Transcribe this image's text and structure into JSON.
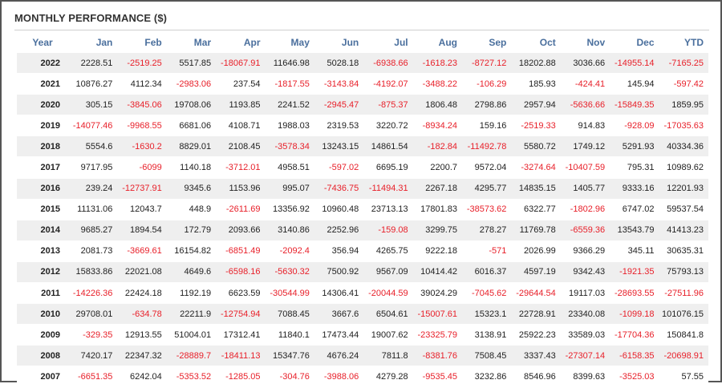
{
  "title": "MONTHLY PERFORMANCE ($)",
  "colors": {
    "negative": "#e8202a",
    "header": "#4a6f9d",
    "stripe": "#efefef"
  },
  "columns": [
    "Year",
    "Jan",
    "Feb",
    "Mar",
    "Apr",
    "May",
    "Jun",
    "Jul",
    "Aug",
    "Sep",
    "Oct",
    "Nov",
    "Dec",
    "YTD"
  ],
  "rows": [
    {
      "year": "2022",
      "values": [
        "2228.51",
        "-2519.25",
        "5517.85",
        "-18067.91",
        "11646.98",
        "5028.18",
        "-6938.66",
        "-1618.23",
        "-8727.12",
        "18202.88",
        "3036.66",
        "-14955.14",
        "-7165.25"
      ]
    },
    {
      "year": "2021",
      "values": [
        "10876.27",
        "4112.34",
        "-2983.06",
        "237.54",
        "-1817.55",
        "-3143.84",
        "-4192.07",
        "-3488.22",
        "-106.29",
        "185.93",
        "-424.41",
        "145.94",
        "-597.42"
      ]
    },
    {
      "year": "2020",
      "values": [
        "305.15",
        "-3845.06",
        "19708.06",
        "1193.85",
        "2241.52",
        "-2945.47",
        "-875.37",
        "1806.48",
        "2798.86",
        "2957.94",
        "-5636.66",
        "-15849.35",
        "1859.95"
      ]
    },
    {
      "year": "2019",
      "values": [
        "-14077.46",
        "-9968.55",
        "6681.06",
        "4108.71",
        "1988.03",
        "2319.53",
        "3220.72",
        "-8934.24",
        "159.16",
        "-2519.33",
        "914.83",
        "-928.09",
        "-17035.63"
      ]
    },
    {
      "year": "2018",
      "values": [
        "5554.6",
        "-1630.2",
        "8829.01",
        "2108.45",
        "-3578.34",
        "13243.15",
        "14861.54",
        "-182.84",
        "-11492.78",
        "5580.72",
        "1749.12",
        "5291.93",
        "40334.36"
      ]
    },
    {
      "year": "2017",
      "values": [
        "9717.95",
        "-6099",
        "1140.18",
        "-3712.01",
        "4958.51",
        "-597.02",
        "6695.19",
        "2200.7",
        "9572.04",
        "-3274.64",
        "-10407.59",
        "795.31",
        "10989.62"
      ]
    },
    {
      "year": "2016",
      "values": [
        "239.24",
        "-12737.91",
        "9345.6",
        "1153.96",
        "995.07",
        "-7436.75",
        "-11494.31",
        "2267.18",
        "4295.77",
        "14835.15",
        "1405.77",
        "9333.16",
        "12201.93"
      ]
    },
    {
      "year": "2015",
      "values": [
        "11131.06",
        "12043.7",
        "448.9",
        "-2611.69",
        "13356.92",
        "10960.48",
        "23713.13",
        "17801.83",
        "-38573.62",
        "6322.77",
        "-1802.96",
        "6747.02",
        "59537.54"
      ]
    },
    {
      "year": "2014",
      "values": [
        "9685.27",
        "1894.54",
        "172.79",
        "2093.66",
        "3140.86",
        "2252.96",
        "-159.08",
        "3299.75",
        "278.27",
        "11769.78",
        "-6559.36",
        "13543.79",
        "41413.23"
      ]
    },
    {
      "year": "2013",
      "values": [
        "2081.73",
        "-3669.61",
        "16154.82",
        "-6851.49",
        "-2092.4",
        "356.94",
        "4265.75",
        "9222.18",
        "-571",
        "2026.99",
        "9366.29",
        "345.11",
        "30635.31"
      ]
    },
    {
      "year": "2012",
      "values": [
        "15833.86",
        "22021.08",
        "4649.6",
        "-6598.16",
        "-5630.32",
        "7500.92",
        "9567.09",
        "10414.42",
        "6016.37",
        "4597.19",
        "9342.43",
        "-1921.35",
        "75793.13"
      ]
    },
    {
      "year": "2011",
      "values": [
        "-14226.36",
        "22424.18",
        "1192.19",
        "6623.59",
        "-30544.99",
        "14306.41",
        "-20044.59",
        "39024.29",
        "-7045.62",
        "-29644.54",
        "19117.03",
        "-28693.55",
        "-27511.96"
      ]
    },
    {
      "year": "2010",
      "values": [
        "29708.01",
        "-634.78",
        "22211.9",
        "-12754.94",
        "7088.45",
        "3667.6",
        "6504.61",
        "-15007.61",
        "15323.1",
        "22728.91",
        "23340.08",
        "-1099.18",
        "101076.15"
      ]
    },
    {
      "year": "2009",
      "values": [
        "-329.35",
        "12913.55",
        "51004.01",
        "17312.41",
        "11840.1",
        "17473.44",
        "19007.62",
        "-23325.79",
        "3138.91",
        "25922.23",
        "33589.03",
        "-17704.36",
        "150841.8"
      ]
    },
    {
      "year": "2008",
      "values": [
        "7420.17",
        "22347.32",
        "-28889.7",
        "-18411.13",
        "15347.76",
        "4676.24",
        "7811.8",
        "-8381.76",
        "7508.45",
        "3337.43",
        "-27307.14",
        "-6158.35",
        "-20698.91"
      ]
    },
    {
      "year": "2007",
      "values": [
        "-6651.35",
        "6242.04",
        "-5353.52",
        "-1285.05",
        "-304.76",
        "-3988.06",
        "4279.28",
        "-9535.45",
        "3232.86",
        "8546.96",
        "8399.63",
        "-3525.03",
        "57.55"
      ]
    }
  ]
}
